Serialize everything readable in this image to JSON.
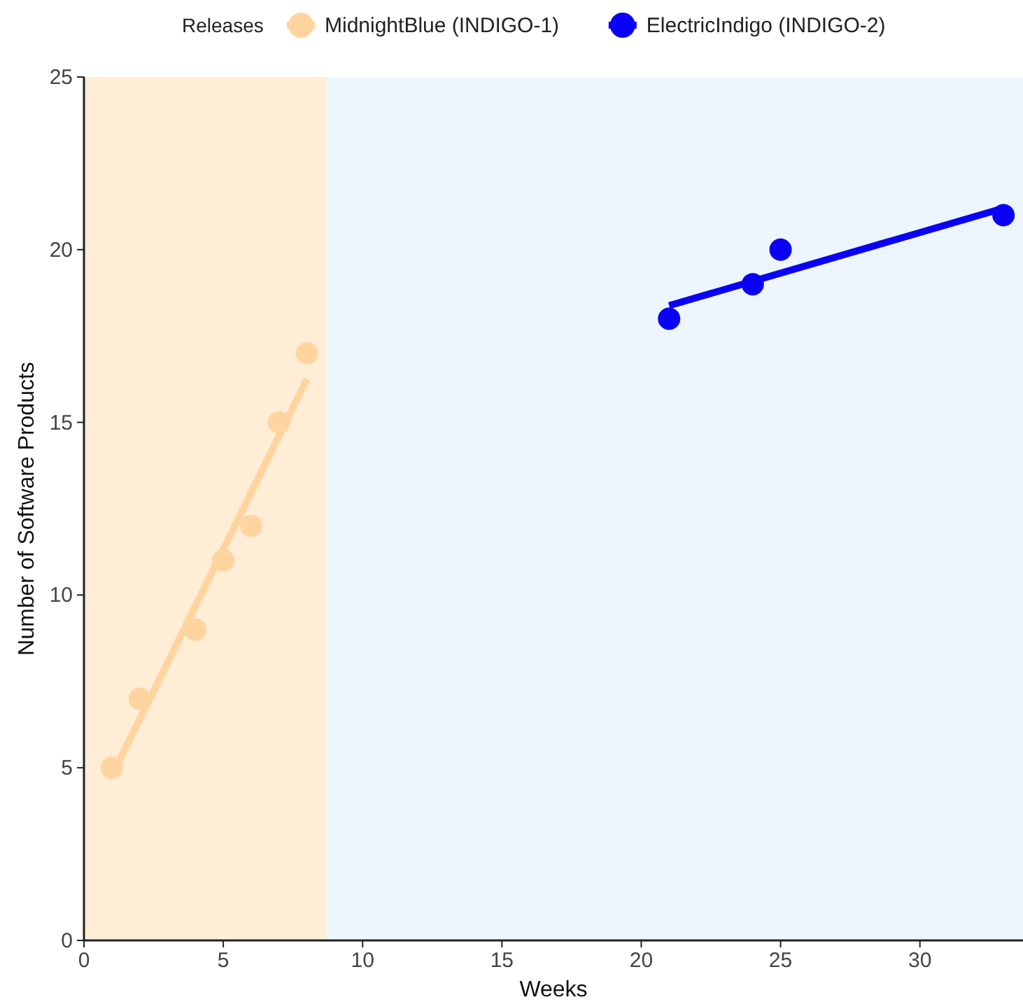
{
  "chart_data": {
    "type": "scatter",
    "xlabel": "Weeks",
    "ylabel": "Number of Software Products",
    "legend_title": "Releases",
    "legend": "top",
    "grid": false,
    "xlim": [
      0,
      33.7
    ],
    "xticks": [
      0,
      5,
      10,
      15,
      20,
      25,
      30
    ],
    "ylim": [
      0,
      25
    ],
    "yticks": [
      0,
      5,
      10,
      15,
      20,
      25
    ],
    "bands": [
      {
        "axis": "x",
        "from": 0,
        "to": 8.7,
        "color": "#ffedd6"
      },
      {
        "axis": "x",
        "from": 8.7,
        "to": 33.7,
        "color": "#edf6fe"
      }
    ],
    "series": [
      {
        "name": "MidnightBlue (INDIGO-1)",
        "marker": "circle",
        "color": "#ffd49e",
        "x": [
          1,
          2,
          4,
          5,
          6,
          7,
          8
        ],
        "values": [
          5,
          7,
          9,
          11,
          12,
          15,
          17
        ]
      },
      {
        "name": "ElectricIndigo (INDIGO-2)",
        "marker": "circle",
        "color": "#0a00f5",
        "x": [
          21,
          24,
          25,
          33
        ],
        "values": [
          18,
          19,
          20,
          21
        ]
      },
      {
        "type": "line",
        "marker": "none",
        "color": "#ffd49e",
        "x": [
          1,
          8
        ],
        "values": [
          4.76,
          16.25
        ]
      },
      {
        "type": "line",
        "marker": "none",
        "color": "#0a00f5",
        "x": [
          21,
          33
        ],
        "values": [
          18.38,
          21.2
        ]
      }
    ]
  }
}
